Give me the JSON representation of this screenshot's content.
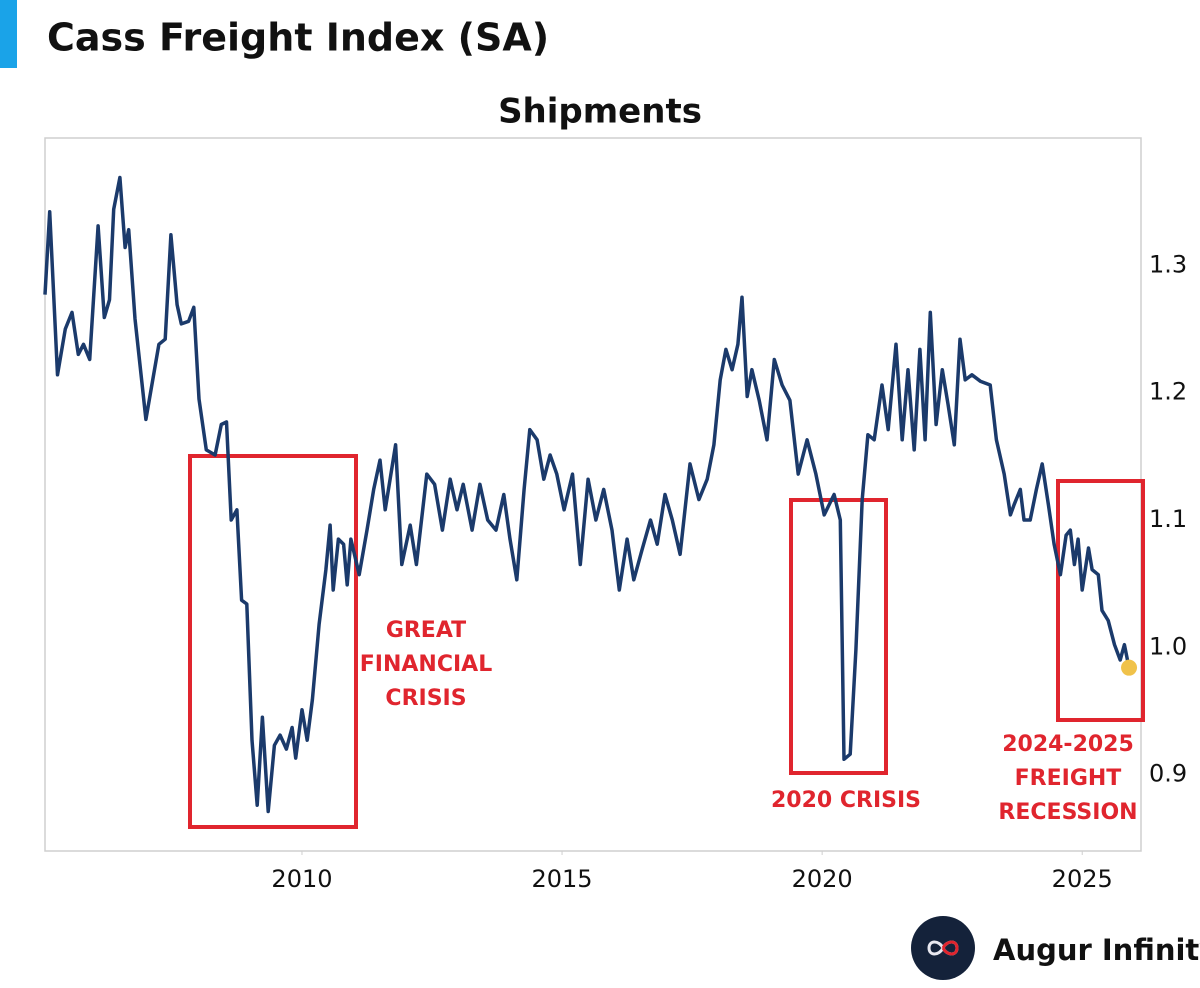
{
  "header": {
    "title": "Cass Freight Index (SA)"
  },
  "brand": "Augur Infinity",
  "chart_data": {
    "type": "line",
    "title": "Shipments",
    "color": "#1b3a6b",
    "highlight_color": "#f0c24a",
    "xlim": [
      2005.06,
      2026.13
    ],
    "xticks": [
      2010,
      2015,
      2020,
      2025
    ],
    "ylim": [
      0.84,
      1.4
    ],
    "yticks": [
      0.9,
      {
        "value": 1,
        "label": "1.0"
      },
      1.1,
      1.2,
      1.3
    ],
    "grid": false,
    "annotations": [
      [
        "GREAT",
        "FINANCIAL",
        "CRISIS"
      ],
      [
        "2020 CRISIS"
      ],
      [
        "2024-2025",
        "FREIGHT",
        "RECESSION"
      ]
    ],
    "x": [
      2005.06,
      2005.15,
      2005.3,
      2005.45,
      2005.58,
      2005.7,
      2005.8,
      2005.92,
      2006.08,
      2006.2,
      2006.3,
      2006.38,
      2006.5,
      2006.6,
      2006.67,
      2006.79,
      2007.0,
      2007.25,
      2007.37,
      2007.48,
      2007.6,
      2007.68,
      2007.82,
      2007.92,
      2008.02,
      2008.16,
      2008.33,
      2008.45,
      2008.55,
      2008.64,
      2008.75,
      2008.84,
      2008.94,
      2009.04,
      2009.14,
      2009.24,
      2009.35,
      2009.47,
      2009.58,
      2009.7,
      2009.81,
      2009.88,
      2010.0,
      2010.1,
      2010.2,
      2010.33,
      2010.46,
      2010.54,
      2010.6,
      2010.7,
      2010.8,
      2010.87,
      2010.94,
      2011.1,
      2011.25,
      2011.38,
      2011.5,
      2011.6,
      2011.8,
      2011.92,
      2012.08,
      2012.2,
      2012.4,
      2012.55,
      2012.7,
      2012.85,
      2012.98,
      2013.1,
      2013.27,
      2013.42,
      2013.57,
      2013.73,
      2013.88,
      2014.0,
      2014.13,
      2014.27,
      2014.38,
      2014.52,
      2014.65,
      2014.77,
      2014.9,
      2015.04,
      2015.2,
      2015.35,
      2015.5,
      2015.65,
      2015.8,
      2015.96,
      2016.1,
      2016.25,
      2016.38,
      2016.54,
      2016.7,
      2016.83,
      2016.98,
      2017.12,
      2017.27,
      2017.46,
      2017.63,
      2017.79,
      2017.92,
      2018.04,
      2018.15,
      2018.27,
      2018.38,
      2018.46,
      2018.56,
      2018.65,
      2018.79,
      2018.94,
      2019.08,
      2019.23,
      2019.38,
      2019.54,
      2019.71,
      2019.88,
      2020.04,
      2020.23,
      2020.35,
      2020.42,
      2020.54,
      2020.65,
      2020.77,
      2020.88,
      2021.0,
      2021.15,
      2021.27,
      2021.42,
      2021.54,
      2021.65,
      2021.77,
      2021.88,
      2021.98,
      2022.08,
      2022.19,
      2022.31,
      2022.42,
      2022.54,
      2022.65,
      2022.75,
      2022.88,
      2023.04,
      2023.23,
      2023.35,
      2023.5,
      2023.62,
      2023.69,
      2023.81,
      2023.88,
      2024.0,
      2024.12,
      2024.23,
      2024.35,
      2024.46,
      2024.58,
      2024.69,
      2024.77,
      2024.85,
      2024.92,
      2025.0,
      2025.12,
      2025.19,
      2025.31,
      2025.38,
      2025.5,
      2025.62,
      2025.73,
      2025.81,
      2025.9
    ],
    "values": [
      1.277,
      1.342,
      1.214,
      1.25,
      1.263,
      1.23,
      1.238,
      1.226,
      1.331,
      1.259,
      1.273,
      1.344,
      1.369,
      1.314,
      1.328,
      1.258,
      1.179,
      1.238,
      1.242,
      1.324,
      1.269,
      1.254,
      1.256,
      1.267,
      1.195,
      1.155,
      1.151,
      1.175,
      1.177,
      1.1,
      1.108,
      1.037,
      1.034,
      0.927,
      0.876,
      0.945,
      0.871,
      0.923,
      0.931,
      0.92,
      0.937,
      0.913,
      0.951,
      0.927,
      0.959,
      1.018,
      1.061,
      1.096,
      1.045,
      1.085,
      1.081,
      1.049,
      1.085,
      1.057,
      1.092,
      1.124,
      1.147,
      1.108,
      1.159,
      1.065,
      1.096,
      1.065,
      1.136,
      1.128,
      1.092,
      1.132,
      1.108,
      1.128,
      1.092,
      1.128,
      1.1,
      1.092,
      1.12,
      1.085,
      1.053,
      1.124,
      1.171,
      1.163,
      1.132,
      1.151,
      1.136,
      1.108,
      1.136,
      1.065,
      1.132,
      1.1,
      1.124,
      1.092,
      1.045,
      1.085,
      1.053,
      1.077,
      1.1,
      1.081,
      1.12,
      1.1,
      1.073,
      1.144,
      1.116,
      1.132,
      1.159,
      1.21,
      1.234,
      1.218,
      1.238,
      1.275,
      1.197,
      1.218,
      1.194,
      1.163,
      1.226,
      1.206,
      1.194,
      1.136,
      1.163,
      1.136,
      1.104,
      1.12,
      1.1,
      0.912,
      0.916,
      0.998,
      1.116,
      1.167,
      1.163,
      1.206,
      1.171,
      1.238,
      1.163,
      1.218,
      1.155,
      1.234,
      1.163,
      1.263,
      1.175,
      1.218,
      1.191,
      1.159,
      1.242,
      1.21,
      1.214,
      1.209,
      1.206,
      1.163,
      1.136,
      1.104,
      1.112,
      1.124,
      1.1,
      1.1,
      1.124,
      1.144,
      1.112,
      1.081,
      1.057,
      1.088,
      1.092,
      1.065,
      1.085,
      1.045,
      1.078,
      1.061,
      1.057,
      1.029,
      1.021,
      1.002,
      0.99,
      1.002,
      0.984
    ]
  }
}
